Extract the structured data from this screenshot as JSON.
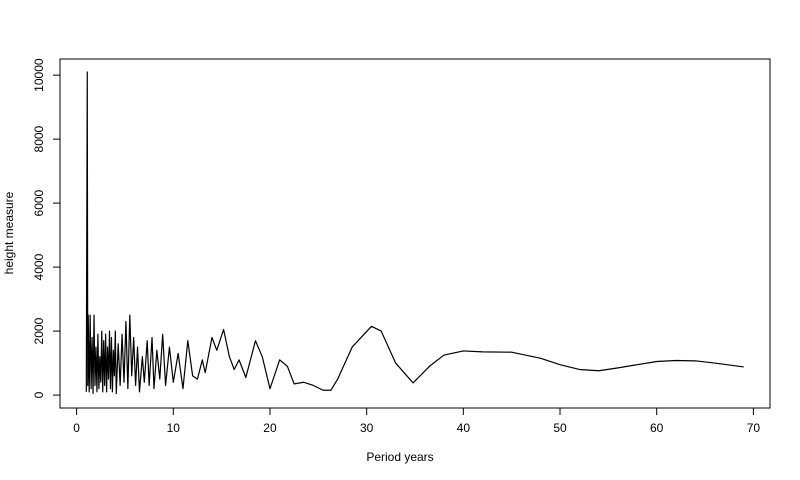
{
  "chart_data": {
    "type": "line",
    "x_label": "Period years",
    "y_label": "height measure",
    "x": [
      1.0,
      1.1,
      1.15,
      1.2,
      1.3,
      1.4,
      1.5,
      1.6,
      1.7,
      1.8,
      1.9,
      2.0,
      2.1,
      2.2,
      2.3,
      2.4,
      2.5,
      2.6,
      2.7,
      2.8,
      2.9,
      3.0,
      3.1,
      3.2,
      3.3,
      3.4,
      3.5,
      3.6,
      3.7,
      3.8,
      3.9,
      4.0,
      4.1,
      4.3,
      4.5,
      4.7,
      4.9,
      5.1,
      5.3,
      5.5,
      5.7,
      5.9,
      6.1,
      6.3,
      6.5,
      6.8,
      7.0,
      7.3,
      7.5,
      7.8,
      8.0,
      8.3,
      8.6,
      8.9,
      9.2,
      9.6,
      10.0,
      10.5,
      11.0,
      11.5,
      12.0,
      12.5,
      13.0,
      13.3,
      14.0,
      14.5,
      15.2,
      15.8,
      16.3,
      16.8,
      17.5,
      18.5,
      19.2,
      20.0,
      21.0,
      21.8,
      22.5,
      23.5,
      24.5,
      25.5,
      26.3,
      27.0,
      28.5,
      30.5,
      31.5,
      33.0,
      34.8,
      36.5,
      38.0,
      40.0,
      42.0,
      45.0,
      48.0,
      50.0,
      52.0,
      54.0,
      56.0,
      58.0,
      60.0,
      62.0,
      64.0,
      66.0,
      69.0
    ],
    "values": [
      100,
      10100,
      300,
      2500,
      100,
      2500,
      200,
      1800,
      50,
      2500,
      300,
      1500,
      100,
      1900,
      200,
      1200,
      400,
      2000,
      100,
      1700,
      300,
      1900,
      100,
      1500,
      500,
      2000,
      200,
      1800,
      100,
      1400,
      600,
      2000,
      50,
      1600,
      300,
      1900,
      400,
      2300,
      200,
      2500,
      600,
      1800,
      300,
      1500,
      100,
      1200,
      400,
      1700,
      300,
      1800,
      200,
      1400,
      500,
      1900,
      300,
      1500,
      400,
      1300,
      200,
      1700,
      600,
      500,
      1100,
      700,
      1800,
      1400,
      2050,
      1200,
      800,
      1100,
      550,
      1700,
      1200,
      200,
      1100,
      900,
      350,
      400,
      300,
      150,
      150,
      500,
      1500,
      2150,
      2000,
      1000,
      380,
      900,
      1250,
      1380,
      1350,
      1340,
      1150,
      950,
      800,
      760,
      850,
      950,
      1050,
      1080,
      1070,
      1000,
      880
    ],
    "color": "#000000",
    "xlim": [
      -1.72,
      71.72
    ],
    "xticks": [
      0,
      10,
      20,
      30,
      40,
      50,
      60,
      70
    ],
    "ylim": [
      -404,
      10504
    ],
    "yticks": [
      0,
      2000,
      4000,
      6000,
      8000,
      10000
    ]
  }
}
